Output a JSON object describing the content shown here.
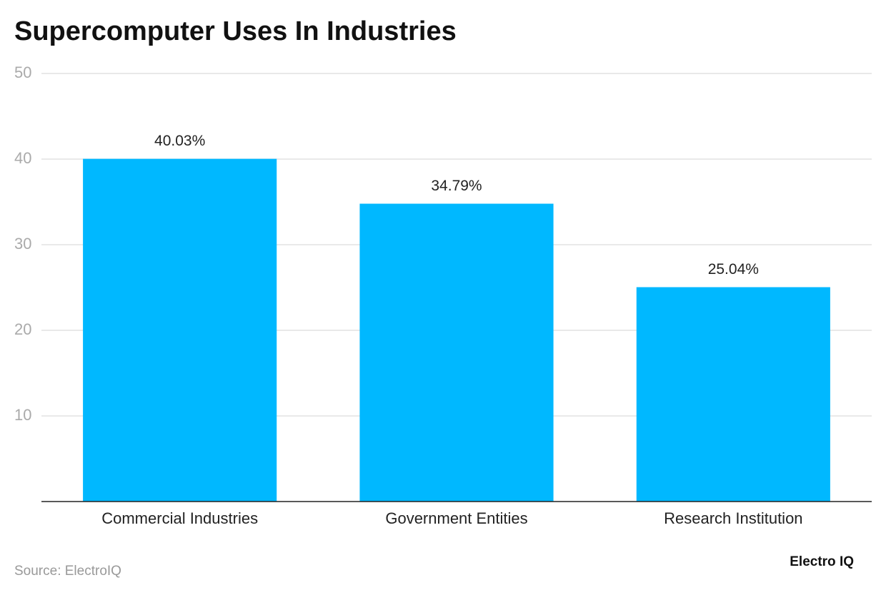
{
  "chart_data": {
    "type": "bar",
    "title": "Supercomputer Uses In Industries",
    "categories": [
      "Commercial Industries",
      "Government Entities",
      "Research Institution"
    ],
    "values": [
      40.03,
      34.79,
      25.04
    ],
    "value_labels": [
      "40.03%",
      "34.79%",
      "25.04%"
    ],
    "color": "#00b8ff",
    "ylim": [
      0,
      50
    ],
    "yticks": [
      10,
      20,
      30,
      40,
      50
    ],
    "grid": true,
    "source": "Source: ElectroIQ",
    "brand": "Electro IQ"
  }
}
